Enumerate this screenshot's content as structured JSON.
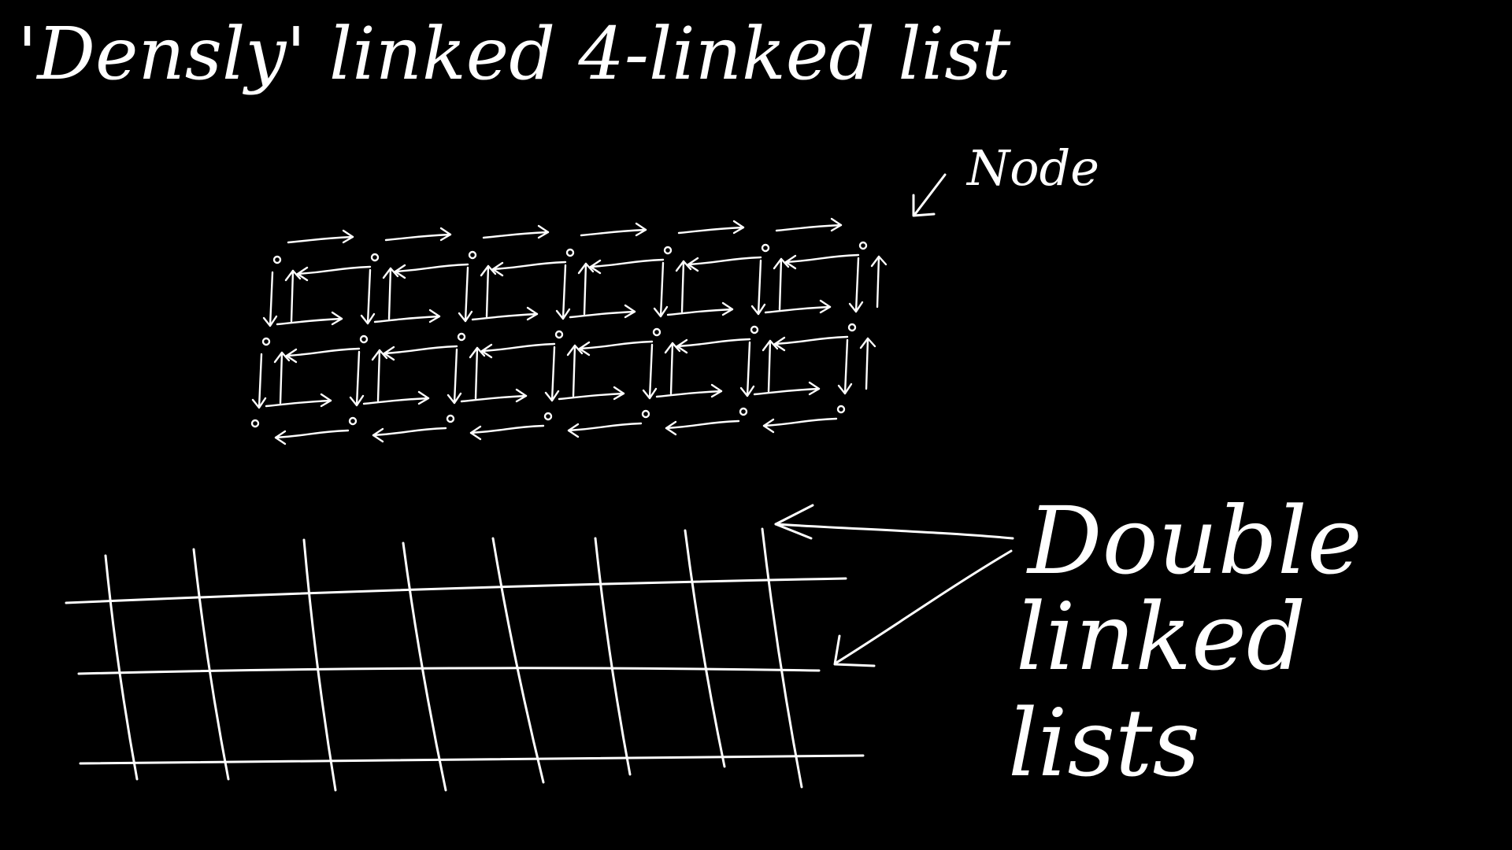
{
  "title": "'Densly' linked 4-linked list",
  "node_label": "Node",
  "double_label": {
    "line1": "Double",
    "line2": "linked",
    "line3": "lists"
  },
  "colors": {
    "background": "#000000",
    "ink": "#ffffff"
  },
  "lattice": {
    "rows": 3,
    "columns": 7
  },
  "grid": {
    "horizontal_lines": 3,
    "vertical_lines": 8
  }
}
